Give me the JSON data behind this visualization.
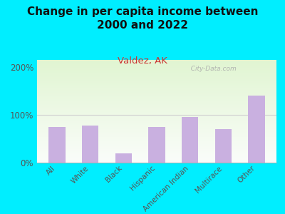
{
  "title": "Change in per capita income between\n2000 and 2022",
  "subtitle": "Valdez, AK",
  "categories": [
    "All",
    "White",
    "Black",
    "Hispanic",
    "American Indian",
    "Multirace",
    "Other"
  ],
  "values": [
    75,
    78,
    20,
    75,
    95,
    70,
    140
  ],
  "bar_color": "#c9b0e0",
  "title_fontsize": 11,
  "subtitle_fontsize": 9.5,
  "subtitle_color": "#cc3333",
  "title_color": "#111111",
  "bg_outer": "#00eeff",
  "ylabel_ticks": [
    "0%",
    "100%",
    "200%"
  ],
  "yticks": [
    0,
    100,
    200
  ],
  "ylim": [
    0,
    215
  ],
  "watermark": "  City-Data.com",
  "tick_label_color": "#555555",
  "axis_label_fontsize": 7.5
}
